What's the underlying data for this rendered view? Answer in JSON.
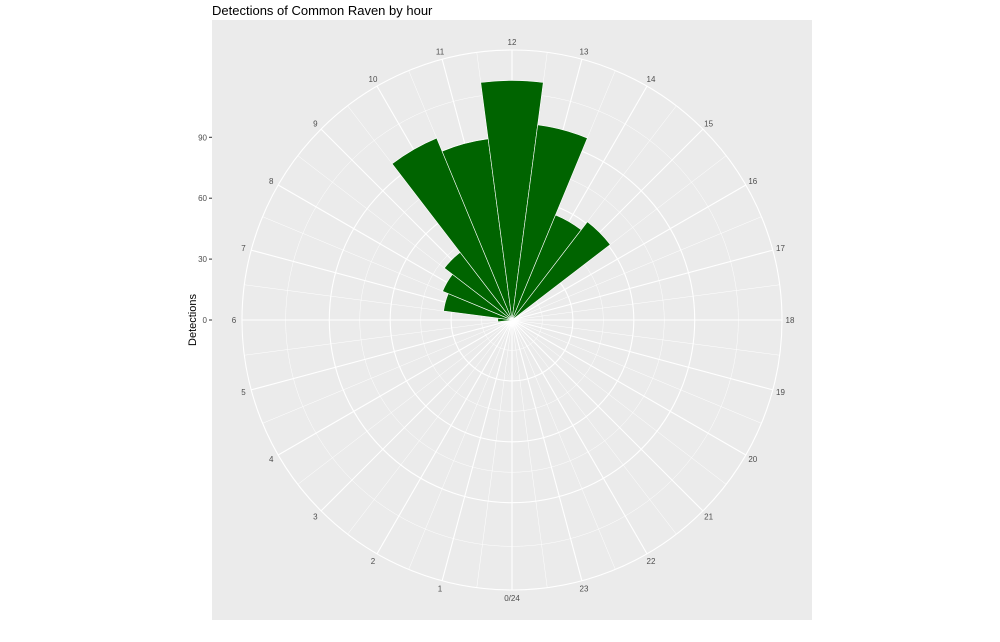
{
  "chart_data": {
    "type": "bar",
    "polar": true,
    "title": "Detections of Common Raven by hour",
    "ylabel": "Detections",
    "xlabel": "",
    "categories": [
      "0/24",
      "1",
      "2",
      "3",
      "4",
      "5",
      "6",
      "7",
      "8",
      "9",
      "10",
      "11",
      "12",
      "13",
      "14",
      "15",
      "16",
      "17",
      "18",
      "19",
      "20",
      "21",
      "22",
      "23"
    ],
    "series": [
      {
        "values": [
          0,
          0,
          0,
          0,
          0,
          0,
          7,
          34,
          37,
          42,
          97,
          90,
          118,
          97,
          56,
          61,
          0,
          0,
          0,
          0,
          0,
          0,
          0,
          0
        ]
      }
    ],
    "yticks": [
      0,
      30,
      60,
      90
    ],
    "ylim": [
      0,
      133
    ],
    "grid": true,
    "bar_color": "#006400",
    "panel_color": "#ebebeb"
  }
}
